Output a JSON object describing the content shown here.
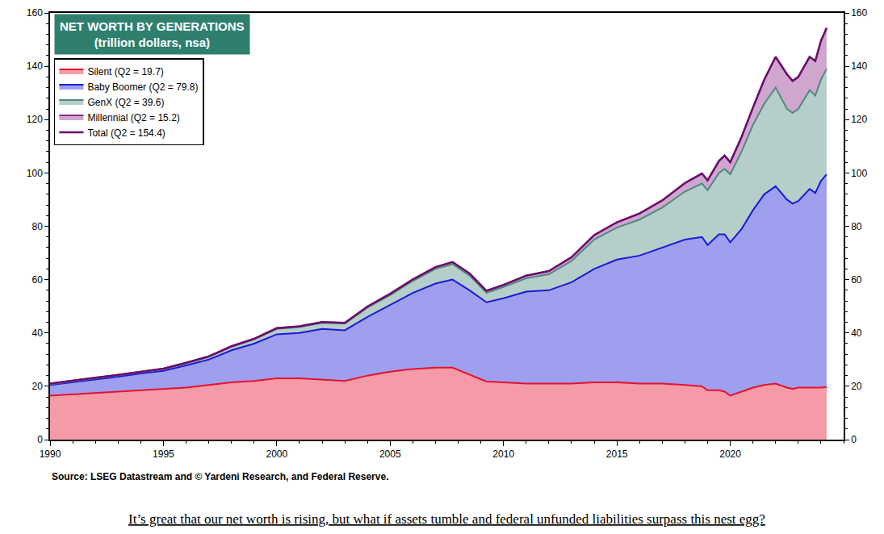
{
  "chart_data": {
    "type": "area",
    "title": "NET WORTH BY GENERATIONS",
    "subtitle": "(trillion dollars, nsa)",
    "source": "Source: LSEG Datastream and © Yardeni Research, and Federal Reserve.",
    "caption": "It’s great that our net worth is rising, but what if assets tumble and federal unfunded liabilities surpass this nest egg?",
    "stacked": true,
    "grid": false,
    "legend": "upper left",
    "x": [
      1990,
      1991,
      1992,
      1993,
      1994,
      1995,
      1996,
      1997,
      1998,
      1999,
      2000,
      2001,
      2002,
      2003,
      2004,
      2005,
      2006,
      2007,
      2007.75,
      2008.5,
      2009.25,
      2010,
      2011,
      2012,
      2013,
      2014,
      2015,
      2016,
      2017,
      2018,
      2018.75,
      2019,
      2019.5,
      2019.75,
      2020,
      2020.5,
      2021,
      2021.5,
      2022,
      2022.5,
      2022.75,
      2023,
      2023.5,
      2023.75,
      2024,
      2024.25
    ],
    "xlim": [
      1990,
      2025
    ],
    "xticks": [
      1990,
      1995,
      2000,
      2005,
      2010,
      2015,
      2020
    ],
    "ylim": [
      0,
      160
    ],
    "yticks": [
      0,
      20,
      40,
      60,
      80,
      100,
      120,
      140,
      160
    ],
    "series": [
      {
        "name": "Silent (Q2 = 19.7)",
        "color": "#e8112d",
        "values": [
          16.5,
          17,
          17.5,
          18,
          18.5,
          19,
          19.5,
          20.5,
          21.5,
          22,
          23,
          23,
          22.5,
          22,
          24,
          25.5,
          26.5,
          27,
          27,
          24.5,
          21.8,
          21.5,
          21,
          21,
          21,
          21.5,
          21.5,
          21,
          21,
          20.5,
          20,
          18.5,
          18.5,
          18,
          16.5,
          18,
          19.5,
          20.5,
          21,
          19.5,
          19,
          19.5,
          19.5,
          19.3,
          19.5,
          19.7
        ]
      },
      {
        "name": "Baby Boomer (Q2 = 79.8)",
        "color": "#1a1adb",
        "values": [
          4,
          4.5,
          5.1,
          5.6,
          6.3,
          6.8,
          8.3,
          9.5,
          12,
          14,
          16.5,
          17,
          19,
          19,
          22,
          25,
          28.5,
          31.5,
          33,
          31.5,
          29.7,
          31.5,
          34.5,
          35,
          38,
          42.5,
          46,
          48,
          51,
          54.5,
          56,
          54.5,
          58.5,
          59,
          57.5,
          61,
          66.5,
          71.5,
          74,
          70.5,
          69.5,
          70,
          74.5,
          73.2,
          77.5,
          79.8
        ]
      },
      {
        "name": "GenX (Q2 = 39.6)",
        "color": "#4e8a80",
        "values": [
          0.3,
          0.3,
          0.4,
          0.5,
          0.5,
          0.6,
          0.8,
          1,
          1.3,
          1.6,
          2,
          2.2,
          2.3,
          2.5,
          3.5,
          3.7,
          4.5,
          5.5,
          5.8,
          5.5,
          3.5,
          4.2,
          5,
          6,
          8,
          11,
          12,
          13.5,
          15,
          18,
          20,
          20.5,
          23,
          24.5,
          25.5,
          29,
          32,
          34,
          37,
          34,
          34,
          34.5,
          37,
          36.5,
          38,
          39.6
        ]
      },
      {
        "name": "Millennial (Q2 = 15.2)",
        "color": "#8b2a8b",
        "values": [
          0.2,
          0.2,
          0.2,
          0.2,
          0.2,
          0.2,
          0.2,
          0.2,
          0.2,
          0.2,
          0.3,
          0.3,
          0.3,
          0.3,
          0.4,
          0.5,
          0.6,
          0.7,
          0.8,
          0.8,
          0.8,
          0.8,
          1,
          1.2,
          1.4,
          1.7,
          2,
          2.3,
          2.7,
          3.2,
          3.8,
          3.7,
          4.5,
          5,
          4.5,
          5.5,
          6.5,
          9,
          11.5,
          13,
          12,
          12,
          12.5,
          13,
          14.5,
          15.2
        ]
      },
      {
        "name": "Total (Q2 = 154.4)",
        "color": "#6b0f6b",
        "type": "line",
        "values": [
          21,
          22,
          23.2,
          24.3,
          25.5,
          26.6,
          28.8,
          31.2,
          35,
          37.8,
          41.8,
          42.5,
          44.1,
          43.8,
          49.9,
          54.7,
          60.1,
          64.7,
          66.6,
          62.3,
          55.8,
          58,
          61.5,
          63.2,
          68.4,
          76.7,
          81.5,
          84.8,
          89.7,
          96.2,
          99.8,
          97.2,
          104.5,
          106.5,
          104,
          113.5,
          124.5,
          135,
          143.5,
          137,
          134.5,
          136,
          143.5,
          142,
          149.5,
          154.4
        ]
      }
    ]
  }
}
